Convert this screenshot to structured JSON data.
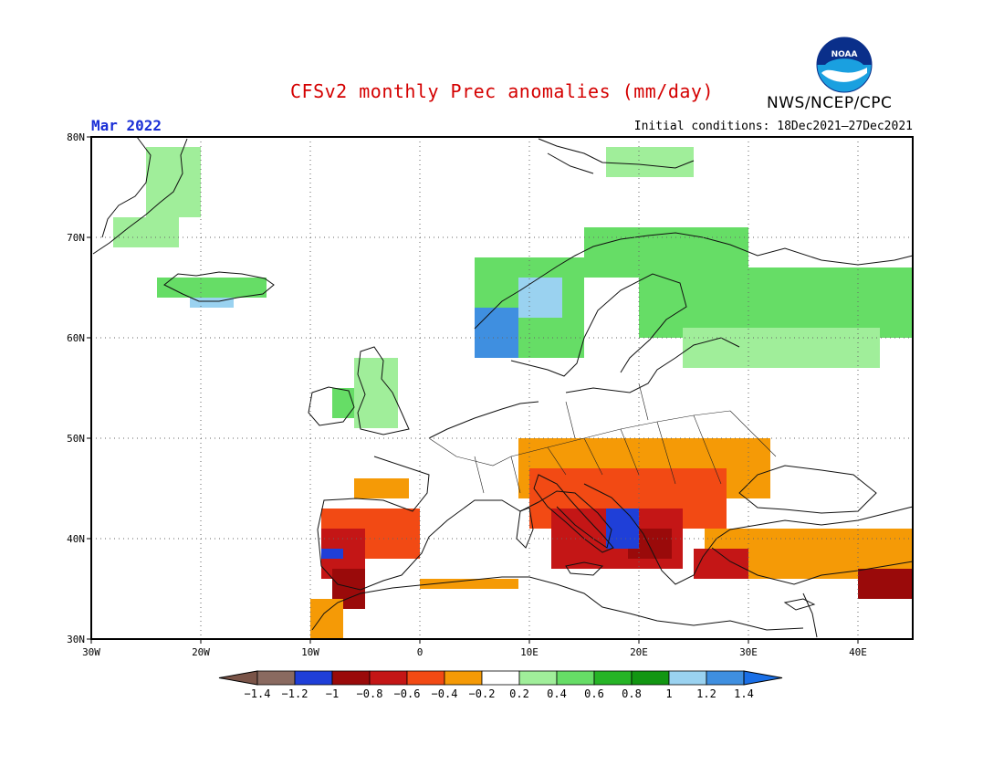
{
  "header": {
    "title": "CFSv2 monthly Prec anomalies (mm/day)",
    "period": "Mar 2022",
    "initial_conditions": "Initial conditions: 18Dec2021–27Dec2021",
    "agency": "NWS/NCEP/CPC",
    "logo_text": "NOAA",
    "logo_icon": "noaa-logo-icon"
  },
  "map": {
    "lon_range": [
      -30,
      45
    ],
    "lat_range": [
      30,
      80
    ],
    "lon_ticks": [
      "30W",
      "20W",
      "10W",
      "0",
      "10E",
      "20E",
      "30E",
      "40E"
    ],
    "lat_ticks": [
      "80N",
      "70N",
      "60N",
      "50N",
      "40N",
      "30N"
    ],
    "grid": "dotted"
  },
  "colorbar": {
    "labels": [
      "−1.4",
      "−1.2",
      "−1",
      "−0.8",
      "−0.6",
      "−0.4",
      "−0.2",
      "0.2",
      "0.4",
      "0.6",
      "0.8",
      "1",
      "1.2",
      "1.4"
    ],
    "colors": [
      "#7a5448",
      "#8a6a60",
      "#1f3fd8",
      "#9a0a0a",
      "#c41616",
      "#f24a14",
      "#f59a06",
      "#ffffff",
      "#a0ee9a",
      "#66dd66",
      "#26b426",
      "#129612",
      "#9ad2f0",
      "#3f8fe0",
      "#1a6fe6"
    ],
    "arrow_low": "#7a5448",
    "arrow_high": "#1a6fe6"
  },
  "anomaly_regions": [
    {
      "category": "0.4",
      "color": "#a0ee9a",
      "lon": [
        -25,
        -20
      ],
      "lat": [
        72,
        79
      ]
    },
    {
      "category": "0.4",
      "color": "#a0ee9a",
      "lon": [
        -28,
        -22
      ],
      "lat": [
        69,
        72
      ]
    },
    {
      "category": "0.6",
      "color": "#66dd66",
      "lon": [
        -24,
        -14
      ],
      "lat": [
        64,
        66
      ]
    },
    {
      "category": "1.2",
      "color": "#9ad2f0",
      "lon": [
        -21,
        -17
      ],
      "lat": [
        63,
        64
      ]
    },
    {
      "category": "0.6",
      "color": "#66dd66",
      "lon": [
        -8,
        -4
      ],
      "lat": [
        52,
        55
      ]
    },
    {
      "category": "0.4",
      "color": "#a0ee9a",
      "lon": [
        -6,
        -2
      ],
      "lat": [
        51,
        58
      ]
    },
    {
      "category": "0.6",
      "color": "#66dd66",
      "lon": [
        5,
        15
      ],
      "lat": [
        58,
        68
      ]
    },
    {
      "category": "1.4",
      "color": "#3f8fe0",
      "lon": [
        5,
        9
      ],
      "lat": [
        58,
        63
      ]
    },
    {
      "category": "1.2",
      "color": "#9ad2f0",
      "lon": [
        9,
        13
      ],
      "lat": [
        62,
        66
      ]
    },
    {
      "category": "0.6",
      "color": "#66dd66",
      "lon": [
        15,
        30
      ],
      "lat": [
        66,
        71
      ]
    },
    {
      "category": "0.6",
      "color": "#66dd66",
      "lon": [
        20,
        45
      ],
      "lat": [
        60,
        67
      ]
    },
    {
      "category": "0.4",
      "color": "#a0ee9a",
      "lon": [
        24,
        42
      ],
      "lat": [
        57,
        61
      ]
    },
    {
      "category": "0.4",
      "color": "#a0ee9a",
      "lon": [
        17,
        25
      ],
      "lat": [
        76,
        79
      ]
    },
    {
      "category": "-0.4",
      "color": "#f59a06",
      "lon": [
        -6,
        -1
      ],
      "lat": [
        44,
        46
      ]
    },
    {
      "category": "-0.6",
      "color": "#f24a14",
      "lon": [
        -9,
        0
      ],
      "lat": [
        38,
        43
      ]
    },
    {
      "category": "-0.8",
      "color": "#c41616",
      "lon": [
        -9,
        -5
      ],
      "lat": [
        36,
        41
      ]
    },
    {
      "category": "-1",
      "color": "#9a0a0a",
      "lon": [
        -8,
        -5
      ],
      "lat": [
        33,
        37
      ]
    },
    {
      "category": "-1.2",
      "color": "#1f3fd8",
      "lon": [
        -9,
        -7
      ],
      "lat": [
        38,
        39
      ]
    },
    {
      "category": "-0.4",
      "color": "#f59a06",
      "lon": [
        -10,
        -7
      ],
      "lat": [
        30,
        34
      ]
    },
    {
      "category": "-0.4",
      "color": "#f59a06",
      "lon": [
        0,
        9
      ],
      "lat": [
        35,
        36
      ]
    },
    {
      "category": "-0.4",
      "color": "#f59a06",
      "lon": [
        9,
        32
      ],
      "lat": [
        44,
        50
      ]
    },
    {
      "category": "-0.6",
      "color": "#f24a14",
      "lon": [
        10,
        28
      ],
      "lat": [
        41,
        47
      ]
    },
    {
      "category": "-0.8",
      "color": "#c41616",
      "lon": [
        12,
        24
      ],
      "lat": [
        37,
        43
      ]
    },
    {
      "category": "-1",
      "color": "#9a0a0a",
      "lon": [
        19,
        23
      ],
      "lat": [
        38,
        41
      ]
    },
    {
      "category": "-1.2",
      "color": "#1f3fd8",
      "lon": [
        17,
        20
      ],
      "lat": [
        39,
        43
      ]
    },
    {
      "category": "-0.4",
      "color": "#f59a06",
      "lon": [
        26,
        45
      ],
      "lat": [
        36,
        41
      ]
    },
    {
      "category": "-0.8",
      "color": "#c41616",
      "lon": [
        25,
        30
      ],
      "lat": [
        36,
        39
      ]
    },
    {
      "category": "-1",
      "color": "#9a0a0a",
      "lon": [
        40,
        45
      ],
      "lat": [
        34,
        37
      ]
    }
  ]
}
